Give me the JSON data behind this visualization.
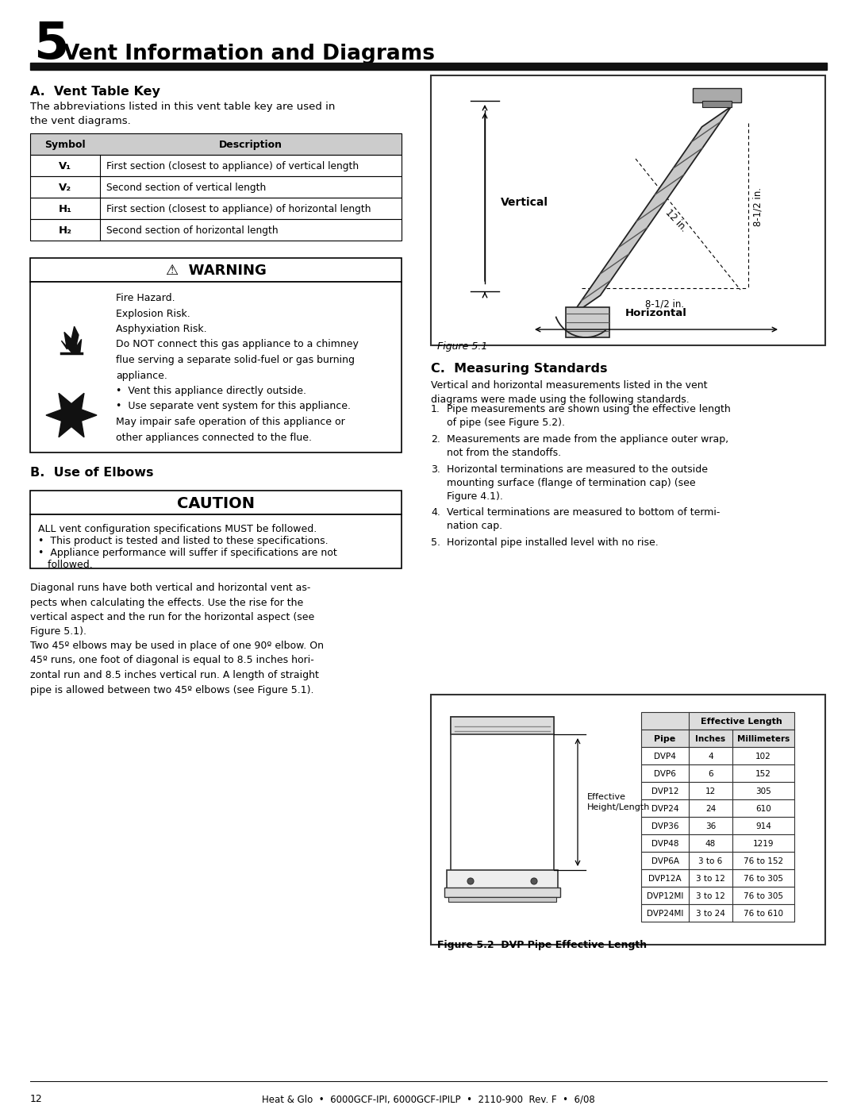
{
  "page_title_number": "5",
  "page_title_text": "Vent Information and Diagrams",
  "section_a_title": "A.  Vent Table Key",
  "section_a_intro": "The abbreviations listed in this vent table key are used in\nthe vent diagrams.",
  "vent_table_headers": [
    "Symbol",
    "Description"
  ],
  "vent_table_rows": [
    [
      "V₁",
      "First section (closest to appliance) of vertical length"
    ],
    [
      "V₂",
      "Second section of vertical length"
    ],
    [
      "H₁",
      "First section (closest to appliance) of horizontal length"
    ],
    [
      "H₂",
      "Second section of horizontal length"
    ]
  ],
  "warning_title": "⚠  WARNING",
  "section_b_title": "B.  Use of Elbows",
  "caution_title": "CAUTION",
  "elbow_text_1": "Diagonal runs have both vertical and horizontal vent as-\npects when calculating the effects. Use the rise for the\nvertical aspect and the run for the horizontal aspect (see\nFigure 5.1).",
  "elbow_text_2": "Two 45º elbows may be used in place of one 90º elbow. On\n45º runs, one foot of diagonal is equal to 8.5 inches hori-\nzontal run and 8.5 inches vertical run. A length of straight\npipe is allowed between two 45º elbows (see Figure 5.1).",
  "section_c_title": "C.  Measuring Standards",
  "section_c_intro": "Vertical and horizontal measurements listed in the vent\ndiagrams were made using the following standards.",
  "figure51_caption": "Figure 5.1",
  "figure52_caption": "Figure 5.2  DVP Pipe Effective Length",
  "pipe_table_rows": [
    [
      "DVP4",
      "4",
      "102"
    ],
    [
      "DVP6",
      "6",
      "152"
    ],
    [
      "DVP12",
      "12",
      "305"
    ],
    [
      "DVP24",
      "24",
      "610"
    ],
    [
      "DVP36",
      "36",
      "914"
    ],
    [
      "DVP48",
      "48",
      "1219"
    ],
    [
      "DVP6A",
      "3 to 6",
      "76 to 152"
    ],
    [
      "DVP12A",
      "3 to 12",
      "76 to 305"
    ],
    [
      "DVP12MI",
      "3 to 12",
      "76 to 305"
    ],
    [
      "DVP24MI",
      "3 to 24",
      "76 to 610"
    ]
  ],
  "footer_text": "12          Heat & Glo  •  6000GCF-IPI, 6000GCF-IPILP  •  2110-900  Rev. F  •  6/08",
  "bg_color": "#ffffff",
  "text_color": "#000000",
  "header_bar_color": "#111111"
}
